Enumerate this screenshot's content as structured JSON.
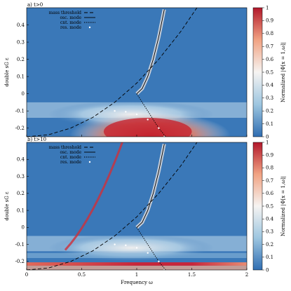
{
  "chart_data": [
    {
      "type": "heatmap",
      "panel_label": "a) t>0",
      "xlabel": "",
      "ylabel": "double sG ε",
      "xlim": [
        0,
        2
      ],
      "ylim": [
        -0.25,
        0.5
      ],
      "x_ticks": [],
      "y_ticks": [
        "-0.2",
        "-0.1",
        "0",
        "0.1",
        "0.2",
        "0.3",
        "0.4"
      ],
      "legend": [
        "mass threshold",
        "osc. mode",
        "cnt. mode",
        "res. mode"
      ],
      "legend_position": "top-left",
      "colorbar": {
        "label": "Normalized |Φ[x = 1,ω]|",
        "range": [
          0,
          1
        ],
        "ticks": [
          "0",
          "0.1",
          "0.2",
          "0.3",
          "0.4",
          "0.5",
          "0.6",
          "0.7",
          "0.8",
          "0.9",
          "1"
        ]
      },
      "series": [
        {
          "name": "mass threshold",
          "style": "dashed",
          "x": [
            0,
            0.2,
            0.4,
            0.6,
            0.8,
            1.0,
            1.2,
            1.4,
            1.6,
            1.8,
            2.0
          ],
          "y": [
            -0.25,
            -0.238,
            -0.2,
            -0.138,
            -0.05,
            0.062,
            0.2,
            0.362,
            0.55,
            0.76,
            0.99
          ]
        },
        {
          "name": "osc. mode",
          "style": "solid",
          "x": [
            1.0,
            1.05,
            1.1,
            1.15,
            1.2,
            1.25
          ],
          "y": [
            0.0,
            0.03,
            0.1,
            0.2,
            0.33,
            0.49
          ]
        },
        {
          "name": "cnt. mode",
          "style": "dotted",
          "x": [
            1.0,
            1.05,
            1.1,
            1.15,
            1.2,
            1.25,
            1.3
          ],
          "y": [
            0.0,
            -0.05,
            -0.1,
            -0.15,
            -0.2,
            -0.24,
            -0.28
          ]
        },
        {
          "name": "res. mode",
          "style": "points",
          "x": [
            0.8,
            0.9,
            1.0,
            1.1,
            1.2,
            1.25
          ],
          "y": [
            -0.1,
            -0.105,
            -0.12,
            -0.15,
            -0.2,
            -0.25
          ]
        }
      ]
    },
    {
      "type": "heatmap",
      "panel_label": "b) t>10",
      "xlabel": "Frequency ω",
      "ylabel": "double sG ε",
      "xlim": [
        0,
        2
      ],
      "ylim": [
        -0.25,
        0.5
      ],
      "x_ticks": [
        "0",
        "0.5",
        "1",
        "1.5",
        "2"
      ],
      "y_ticks": [
        "-0.2",
        "-0.1",
        "0",
        "0.1",
        "0.2",
        "0.3",
        "0.4"
      ],
      "legend": [
        "mass threshold",
        "osc. mode",
        "cnt. mode",
        "res. mode"
      ],
      "legend_position": "top-left",
      "colorbar": {
        "label": "Normalized |Φ[x = 1,ω]|",
        "range": [
          0,
          1
        ],
        "ticks": [
          "0",
          "0.1",
          "0.2",
          "0.3",
          "0.4",
          "0.5",
          "0.6",
          "0.7",
          "0.8",
          "0.9",
          "1"
        ]
      },
      "series": [
        {
          "name": "mass threshold",
          "style": "dashed",
          "x": [
            0,
            0.2,
            0.4,
            0.6,
            0.8,
            1.0,
            1.2,
            1.4,
            1.6,
            1.8,
            2.0
          ],
          "y": [
            -0.25,
            -0.238,
            -0.2,
            -0.138,
            -0.05,
            0.062,
            0.2,
            0.362,
            0.55,
            0.76,
            0.99
          ]
        },
        {
          "name": "osc. mode",
          "style": "solid",
          "x": [
            1.0,
            1.05,
            1.1,
            1.15,
            1.2,
            1.25
          ],
          "y": [
            0.0,
            0.03,
            0.1,
            0.2,
            0.33,
            0.49
          ]
        },
        {
          "name": "cnt. mode",
          "style": "dotted",
          "x": [
            1.0,
            1.05,
            1.1,
            1.15,
            1.2,
            1.25,
            1.3
          ],
          "y": [
            0.0,
            -0.05,
            -0.1,
            -0.15,
            -0.2,
            -0.24,
            -0.28
          ]
        },
        {
          "name": "res. mode",
          "style": "points",
          "x": [
            0.8,
            0.9,
            1.0,
            1.1,
            1.2,
            1.25
          ],
          "y": [
            -0.1,
            -0.105,
            -0.12,
            -0.15,
            -0.2,
            -0.25
          ]
        }
      ]
    }
  ]
}
